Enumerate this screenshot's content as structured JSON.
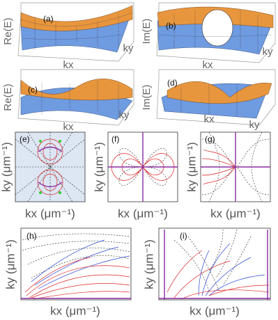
{
  "panels": [
    {
      "label": "(a)",
      "z_label": "Re(E)",
      "x_label": "kx",
      "y_label": "ky"
    },
    {
      "label": "(b)",
      "z_label": "Im(E)",
      "x_label": "kx",
      "y_label": "ky"
    },
    {
      "label": "(c)",
      "z_label": "Re(E)",
      "x_label": "kx",
      "y_label": "ky"
    },
    {
      "label": "(d)",
      "z_label": "Im(E)",
      "x_label": "kx",
      "y_label": "ky"
    },
    {
      "label": "(e)",
      "x_label": "kx (μm⁻¹)",
      "y_label": "ky (μm⁻¹)"
    },
    {
      "label": "(f)",
      "x_label": "kx (μm⁻¹)",
      "y_label": "ky (μm⁻¹)"
    },
    {
      "label": "(g)",
      "x_label": "kx (μm⁻¹)",
      "y_label": "ky (μm⁻¹)"
    },
    {
      "label": "(h)",
      "x_label": "kx (μm⁻¹)",
      "y_label": "ky (μm⁻¹)"
    },
    {
      "label": "(i)",
      "x_label": "kx (μm⁻¹)",
      "y_label": "ky (μm⁻¹)"
    }
  ]
}
